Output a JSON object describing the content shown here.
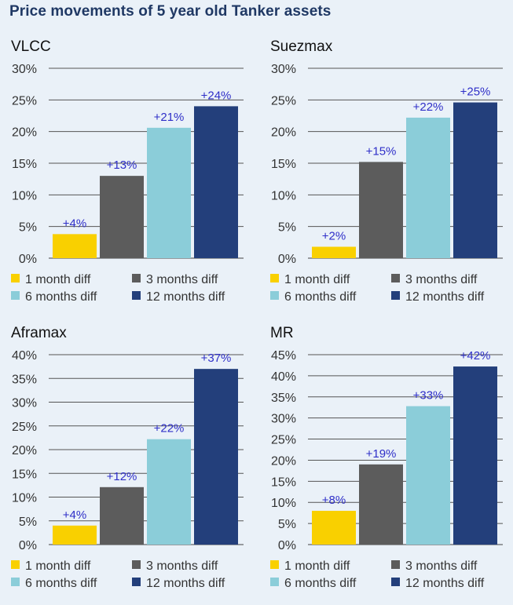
{
  "title": "Price movements of 5 year old Tanker assets",
  "colors": {
    "1 month diff": "#f9d000",
    "3 months diff": "#5c5c5c",
    "6 months diff": "#8bcdd9",
    "12 months diff": "#233f7b"
  },
  "chart_data": [
    {
      "type": "bar",
      "title": "VLCC",
      "categories": [
        "1 month diff",
        "3 months diff",
        "6 months diff",
        "12 months diff"
      ],
      "values": [
        4,
        13,
        21,
        24
      ],
      "bar_values": [
        3.8,
        13.0,
        20.6,
        24.0
      ],
      "labels": [
        "+4%",
        "+13%",
        "+21%",
        "+24%"
      ],
      "ylim": [
        0,
        30
      ],
      "yticks": [
        0,
        5,
        10,
        15,
        20,
        25,
        30
      ],
      "ytick_labels": [
        "0%",
        "5%",
        "10%",
        "15%",
        "20%",
        "25%",
        "30%"
      ],
      "grid": true,
      "legend": "bottom"
    },
    {
      "type": "bar",
      "title": "Suezmax",
      "categories": [
        "1 month diff",
        "3 months diff",
        "6 months diff",
        "12 months diff"
      ],
      "values": [
        2,
        15,
        22,
        25
      ],
      "bar_values": [
        1.8,
        15.2,
        22.2,
        24.6
      ],
      "labels": [
        "+2%",
        "+15%",
        "+22%",
        "+25%"
      ],
      "ylim": [
        0,
        30
      ],
      "yticks": [
        0,
        5,
        10,
        15,
        20,
        25,
        30
      ],
      "ytick_labels": [
        "0%",
        "5%",
        "10%",
        "15%",
        "20%",
        "25%",
        "30%"
      ],
      "grid": true,
      "legend": "bottom"
    },
    {
      "type": "bar",
      "title": "Aframax",
      "categories": [
        "1 month diff",
        "3 months diff",
        "6 months diff",
        "12 months diff"
      ],
      "values": [
        4,
        12,
        22,
        37
      ],
      "bar_values": [
        4.0,
        12.1,
        22.2,
        37.0
      ],
      "labels": [
        "+4%",
        "+12%",
        "+22%",
        "+37%"
      ],
      "ylim": [
        0,
        40
      ],
      "yticks": [
        0,
        5,
        10,
        15,
        20,
        25,
        30,
        35,
        40
      ],
      "ytick_labels": [
        "0%",
        "5%",
        "10%",
        "15%",
        "20%",
        "25%",
        "30%",
        "35%",
        "40%"
      ],
      "grid": true,
      "legend": "bottom"
    },
    {
      "type": "bar",
      "title": "MR",
      "categories": [
        "1 month diff",
        "3 months diff",
        "6 months diff",
        "12 months diff"
      ],
      "values": [
        8,
        19,
        33,
        42
      ],
      "bar_values": [
        8.0,
        19.0,
        32.8,
        42.2
      ],
      "labels": [
        "+8%",
        "+19%",
        "+33%",
        "+42%"
      ],
      "ylim": [
        0,
        45
      ],
      "yticks": [
        0,
        5,
        10,
        15,
        20,
        25,
        30,
        35,
        40,
        45
      ],
      "ytick_labels": [
        "0%",
        "5%",
        "10%",
        "15%",
        "20%",
        "25%",
        "30%",
        "35%",
        "40%",
        "45%"
      ],
      "grid": true,
      "legend": "bottom"
    }
  ]
}
